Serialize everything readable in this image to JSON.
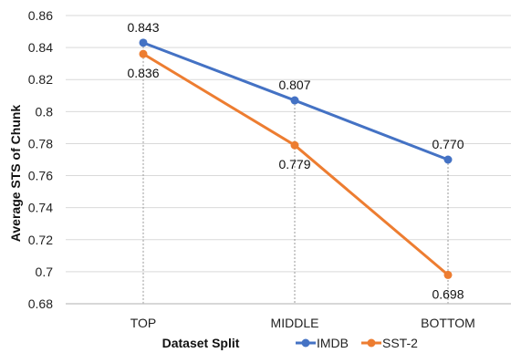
{
  "chart_data": {
    "type": "line",
    "categories": [
      "TOP",
      "MIDDLE",
      "BOTTOM"
    ],
    "series": [
      {
        "name": "IMDB",
        "values": [
          0.843,
          0.807,
          0.77
        ],
        "labels": [
          "0.843",
          "0.807",
          "0.770"
        ],
        "color": "#4472C4",
        "label_position": "above"
      },
      {
        "name": "SST-2",
        "values": [
          0.836,
          0.779,
          0.698
        ],
        "labels": [
          "0.836",
          "0.779",
          "0.698"
        ],
        "color": "#ED7D31",
        "label_position": "below"
      }
    ],
    "xlabel": "Dataset Split",
    "ylabel": "Average STS of Chunk",
    "ylim": [
      0.68,
      0.86
    ],
    "yticks": [
      0.68,
      0.7,
      0.72,
      0.74,
      0.76,
      0.78,
      0.8,
      0.82,
      0.84,
      0.86
    ],
    "ytick_labels": [
      "0.68",
      "0.7",
      "0.72",
      "0.74",
      "0.76",
      "0.78",
      "0.8",
      "0.82",
      "0.84",
      "0.86"
    ],
    "grid": true,
    "drop_lines": true,
    "legend": "bottom-right",
    "colors": {
      "grid": "#d9d9d9",
      "axis": "#bfbfbf",
      "drop_line": "#999999"
    }
  }
}
